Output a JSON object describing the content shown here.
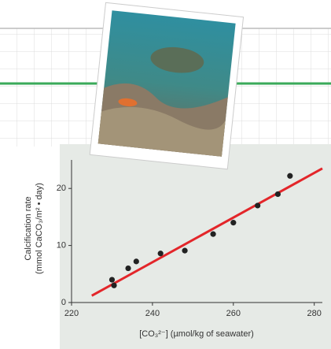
{
  "chart_data": {
    "type": "scatter",
    "x": [
      230,
      230.5,
      234,
      236,
      242,
      248,
      255,
      260,
      266,
      271,
      274
    ],
    "values": [
      4,
      3,
      6,
      7.2,
      8.6,
      9.1,
      12,
      14,
      17,
      19,
      22.2
    ],
    "color": "#222222",
    "trend": {
      "x": [
        225,
        282
      ],
      "values": [
        1.2,
        23.5
      ],
      "color": "#e3262a"
    },
    "xlim": [
      220,
      282
    ],
    "ylim": [
      0,
      25
    ],
    "xticks": [
      220,
      240,
      260,
      280
    ],
    "yticks": [
      0,
      10,
      20
    ],
    "xlabel": "[CO₃²⁻] (µmol/kg of seawater)",
    "ylabel": [
      "Calcification rate",
      "(mmol CaCO₃/m² • day)"
    ],
    "grid": false
  }
}
